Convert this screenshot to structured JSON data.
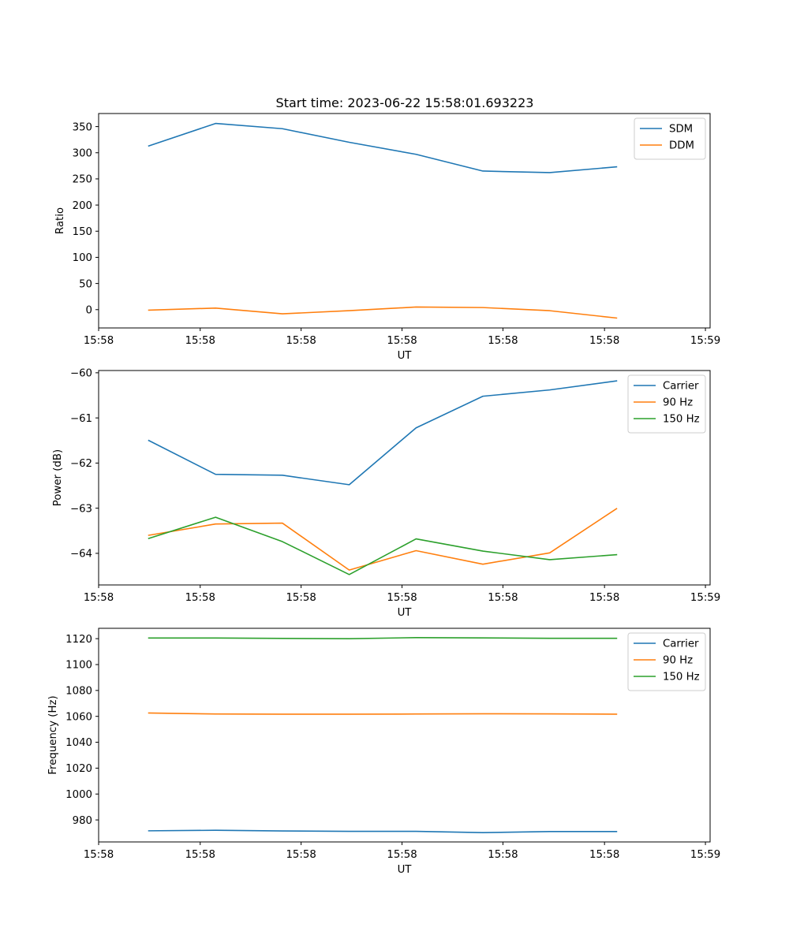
{
  "figure_title": "Start time: 2023-06-22 15:58:01.693223",
  "colors": {
    "blue": "#1f77b4",
    "orange": "#ff7f0e",
    "green": "#2ca02c"
  },
  "chart_data": [
    {
      "type": "line",
      "title": "Start time: 2023-06-22 15:58:01.693223",
      "xlabel": "UT",
      "ylabel": "Ratio",
      "x": [
        0,
        1,
        2,
        3,
        4,
        5,
        6,
        7
      ],
      "xlim": [
        -0.75,
        8.4
      ],
      "xticks": [
        -0.75,
        0.77,
        2.28,
        3.79,
        5.3,
        6.82,
        8.33
      ],
      "xtick_labels": [
        "15:58",
        "15:58",
        "15:58",
        "15:58",
        "15:58",
        "15:58",
        "15:59"
      ],
      "ylim": [
        -35,
        375
      ],
      "yticks": [
        0,
        50,
        100,
        150,
        200,
        250,
        300,
        350
      ],
      "ytick_labels": [
        "0",
        "50",
        "100",
        "150",
        "200",
        "250",
        "300",
        "350"
      ],
      "legend_position": "upper-right",
      "series": [
        {
          "name": "SDM",
          "color": "#1f77b4",
          "values": [
            313,
            356,
            346,
            320,
            297,
            265,
            262,
            273
          ]
        },
        {
          "name": "DDM",
          "color": "#ff7f0e",
          "values": [
            -1,
            3,
            -8,
            -2,
            5,
            4,
            -2,
            -16
          ]
        }
      ]
    },
    {
      "type": "line",
      "title": "",
      "xlabel": "UT",
      "ylabel": "Power (dB)",
      "x": [
        0,
        1,
        2,
        3,
        4,
        5,
        6,
        7
      ],
      "xlim": [
        -0.75,
        8.4
      ],
      "xticks": [
        -0.75,
        0.77,
        2.28,
        3.79,
        5.3,
        6.82,
        8.33
      ],
      "xtick_labels": [
        "15:58",
        "15:58",
        "15:58",
        "15:58",
        "15:58",
        "15:58",
        "15:59"
      ],
      "ylim": [
        -64.7,
        -59.95
      ],
      "yticks": [
        -64,
        -63,
        -62,
        -61,
        -60
      ],
      "ytick_labels": [
        "−64",
        "−63",
        "−62",
        "−61",
        "−60"
      ],
      "legend_position": "upper-right",
      "series": [
        {
          "name": "Carrier",
          "color": "#1f77b4",
          "values": [
            -61.5,
            -62.25,
            -62.27,
            -62.48,
            -61.22,
            -60.52,
            -60.38,
            -60.18
          ]
        },
        {
          "name": "90 Hz",
          "color": "#ff7f0e",
          "values": [
            -63.6,
            -63.35,
            -63.33,
            -64.37,
            -63.94,
            -64.24,
            -63.99,
            -63.01
          ]
        },
        {
          "name": "150 Hz",
          "color": "#2ca02c",
          "values": [
            -63.67,
            -63.2,
            -63.74,
            -64.47,
            -63.68,
            -63.95,
            -64.14,
            -64.03
          ]
        }
      ]
    },
    {
      "type": "line",
      "title": "",
      "xlabel": "UT",
      "ylabel": "Frequency (Hz)",
      "x": [
        0,
        1,
        2,
        3,
        4,
        5,
        6,
        7
      ],
      "xlim": [
        -0.75,
        8.4
      ],
      "xticks": [
        -0.75,
        0.77,
        2.28,
        3.79,
        5.3,
        6.82,
        8.33
      ],
      "xtick_labels": [
        "15:58",
        "15:58",
        "15:58",
        "15:58",
        "15:58",
        "15:58",
        "15:59"
      ],
      "ylim": [
        963,
        1128
      ],
      "yticks": [
        980,
        1000,
        1020,
        1040,
        1060,
        1080,
        1100,
        1120
      ],
      "ytick_labels": [
        "980",
        "1000",
        "1020",
        "1040",
        "1060",
        "1080",
        "1100",
        "1120"
      ],
      "legend_position": "upper-right",
      "series": [
        {
          "name": "Carrier",
          "color": "#1f77b4",
          "values": [
            971.6,
            972.0,
            971.5,
            971.2,
            971.2,
            970.2,
            971.0,
            971.0
          ]
        },
        {
          "name": "90 Hz",
          "color": "#ff7f0e",
          "values": [
            1062.6,
            1061.8,
            1061.7,
            1061.7,
            1061.8,
            1062.0,
            1061.9,
            1061.7
          ]
        },
        {
          "name": "150 Hz",
          "color": "#2ca02c",
          "values": [
            1120.5,
            1120.5,
            1120.2,
            1120.0,
            1120.8,
            1120.6,
            1120.3,
            1120.3
          ]
        }
      ]
    }
  ]
}
